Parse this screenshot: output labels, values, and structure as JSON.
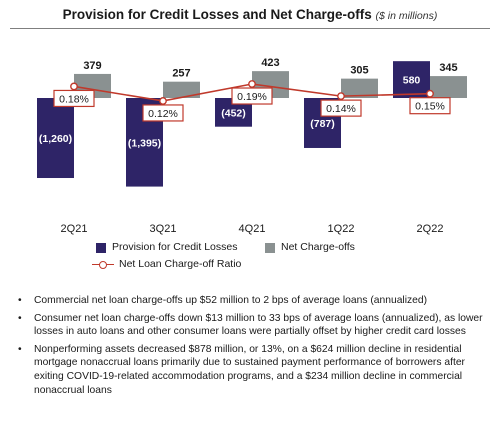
{
  "header": {
    "title": "Provision for Credit Losses and Net Charge-offs",
    "unit": "($ in millions)"
  },
  "colors": {
    "provision": "#2e2467",
    "charge_offs": "#8a9191",
    "ratio_line": "#c0392b"
  },
  "chart_data": {
    "type": "bar",
    "categories": [
      "2Q21",
      "3Q21",
      "4Q21",
      "1Q22",
      "2Q22"
    ],
    "series": [
      {
        "name": "Provision for Credit Losses",
        "values": [
          -1260,
          -1395,
          -452,
          -787,
          580
        ],
        "labels": [
          "(1,260)",
          "(1,395)",
          "(452)",
          "(787)",
          "580"
        ]
      },
      {
        "name": "Net Charge-offs",
        "values": [
          379,
          257,
          423,
          305,
          345
        ],
        "labels": [
          "379",
          "257",
          "423",
          "305",
          "345"
        ]
      },
      {
        "name": "Net Loan Charge-off Ratio",
        "type": "line",
        "values": [
          0.18,
          0.12,
          0.19,
          0.14,
          0.15
        ],
        "labels": [
          "0.18%",
          "0.12%",
          "0.19%",
          "0.14%",
          "0.15%"
        ]
      }
    ],
    "legend_position": "bottom",
    "grid": false
  },
  "legend": {
    "provision": "Provision for Credit Losses",
    "charge_offs": "Net Charge-offs",
    "ratio": "Net Loan Charge-off Ratio"
  },
  "bullets": [
    "Commercial net loan charge-offs up $52 million to 2 bps of average loans (annualized)",
    "Consumer net loan charge-offs down $13 million to 33 bps of average loans (annualized), as lower losses in auto loans and other consumer loans were partially offset by higher credit card losses",
    "Nonperforming assets decreased $878 million, or 13%, on a $624 million decline in residential mortgage nonaccrual loans primarily due to sustained payment performance of borrowers after exiting COVID-19-related accommodation programs, and a $234 million decline in commercial nonaccrual loans"
  ]
}
